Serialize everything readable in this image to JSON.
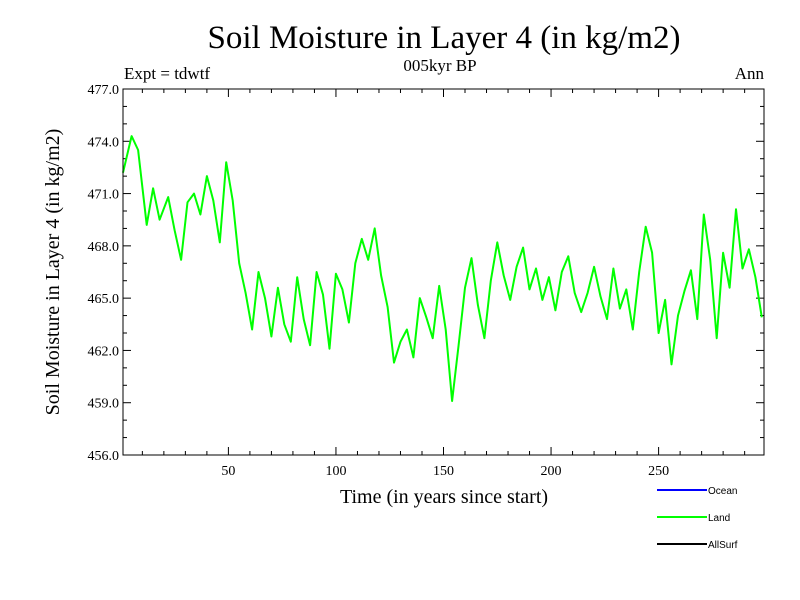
{
  "chart_data": {
    "type": "line",
    "title": "Soil Moisture in Layer 4 (in kg/m2)",
    "subtitle": "005kyr BP",
    "experiment_label": "Expt = tdwtf",
    "season_label": "Ann",
    "xlabel": "Time (in years since start)",
    "ylabel": "Soil Moisture in Layer 4 (in kg/m2)",
    "xlim": [
      1,
      299
    ],
    "ylim": [
      456.0,
      477.0
    ],
    "x_ticks": [
      50,
      100,
      150,
      200,
      250
    ],
    "y_ticks": [
      "456.0",
      "459.0",
      "462.0",
      "465.0",
      "468.0",
      "471.0",
      "474.0",
      "477.0"
    ],
    "legend": [
      {
        "name": "Ocean",
        "color": "#0000ff"
      },
      {
        "name": "Land",
        "color": "#00ff00"
      },
      {
        "name": "AllSurf",
        "color": "#000000"
      }
    ],
    "series": [
      {
        "name": "Land",
        "color": "#00ff00",
        "x": [
          1,
          5,
          8,
          12,
          15,
          18,
          22,
          25,
          28,
          31,
          34,
          37,
          40,
          43,
          46,
          49,
          52,
          55,
          58,
          61,
          64,
          67,
          70,
          73,
          76,
          79,
          82,
          85,
          88,
          91,
          94,
          97,
          100,
          103,
          106,
          109,
          112,
          115,
          118,
          121,
          124,
          127,
          130,
          133,
          136,
          139,
          142,
          145,
          148,
          151,
          154,
          157,
          160,
          163,
          166,
          169,
          172,
          175,
          178,
          181,
          184,
          187,
          190,
          193,
          196,
          199,
          202,
          205,
          208,
          211,
          214,
          217,
          220,
          223,
          226,
          229,
          232,
          235,
          238,
          241,
          244,
          247,
          250,
          253,
          256,
          259,
          262,
          265,
          268,
          271,
          274,
          277,
          280,
          283,
          286,
          289,
          292,
          295,
          298
        ],
        "values": [
          472.2,
          474.3,
          473.5,
          469.2,
          471.3,
          469.5,
          470.8,
          468.9,
          467.2,
          470.5,
          471.0,
          469.8,
          472.0,
          470.6,
          468.2,
          472.8,
          470.6,
          467.0,
          465.3,
          463.2,
          466.5,
          465.0,
          462.8,
          465.6,
          463.5,
          462.5,
          466.2,
          463.8,
          462.3,
          466.5,
          465.2,
          462.1,
          466.4,
          465.5,
          463.6,
          467.0,
          468.4,
          467.2,
          469.0,
          466.3,
          464.5,
          461.3,
          462.5,
          463.2,
          461.6,
          465.0,
          463.9,
          462.7,
          465.7,
          463.2,
          459.1,
          462.3,
          465.6,
          467.3,
          464.6,
          462.7,
          466.0,
          468.2,
          466.3,
          464.9,
          466.8,
          467.9,
          465.5,
          466.7,
          464.9,
          466.2,
          464.3,
          466.5,
          467.4,
          465.3,
          464.2,
          465.3,
          466.8,
          465.1,
          463.8,
          466.7,
          464.4,
          465.5,
          463.2,
          466.5,
          469.1,
          467.6,
          463.0,
          464.9,
          461.2,
          464.0,
          465.4,
          466.6,
          463.8,
          469.8,
          467.2,
          462.7,
          467.6,
          465.6,
          470.1,
          466.7,
          467.8,
          466.2,
          463.9
        ]
      }
    ]
  }
}
